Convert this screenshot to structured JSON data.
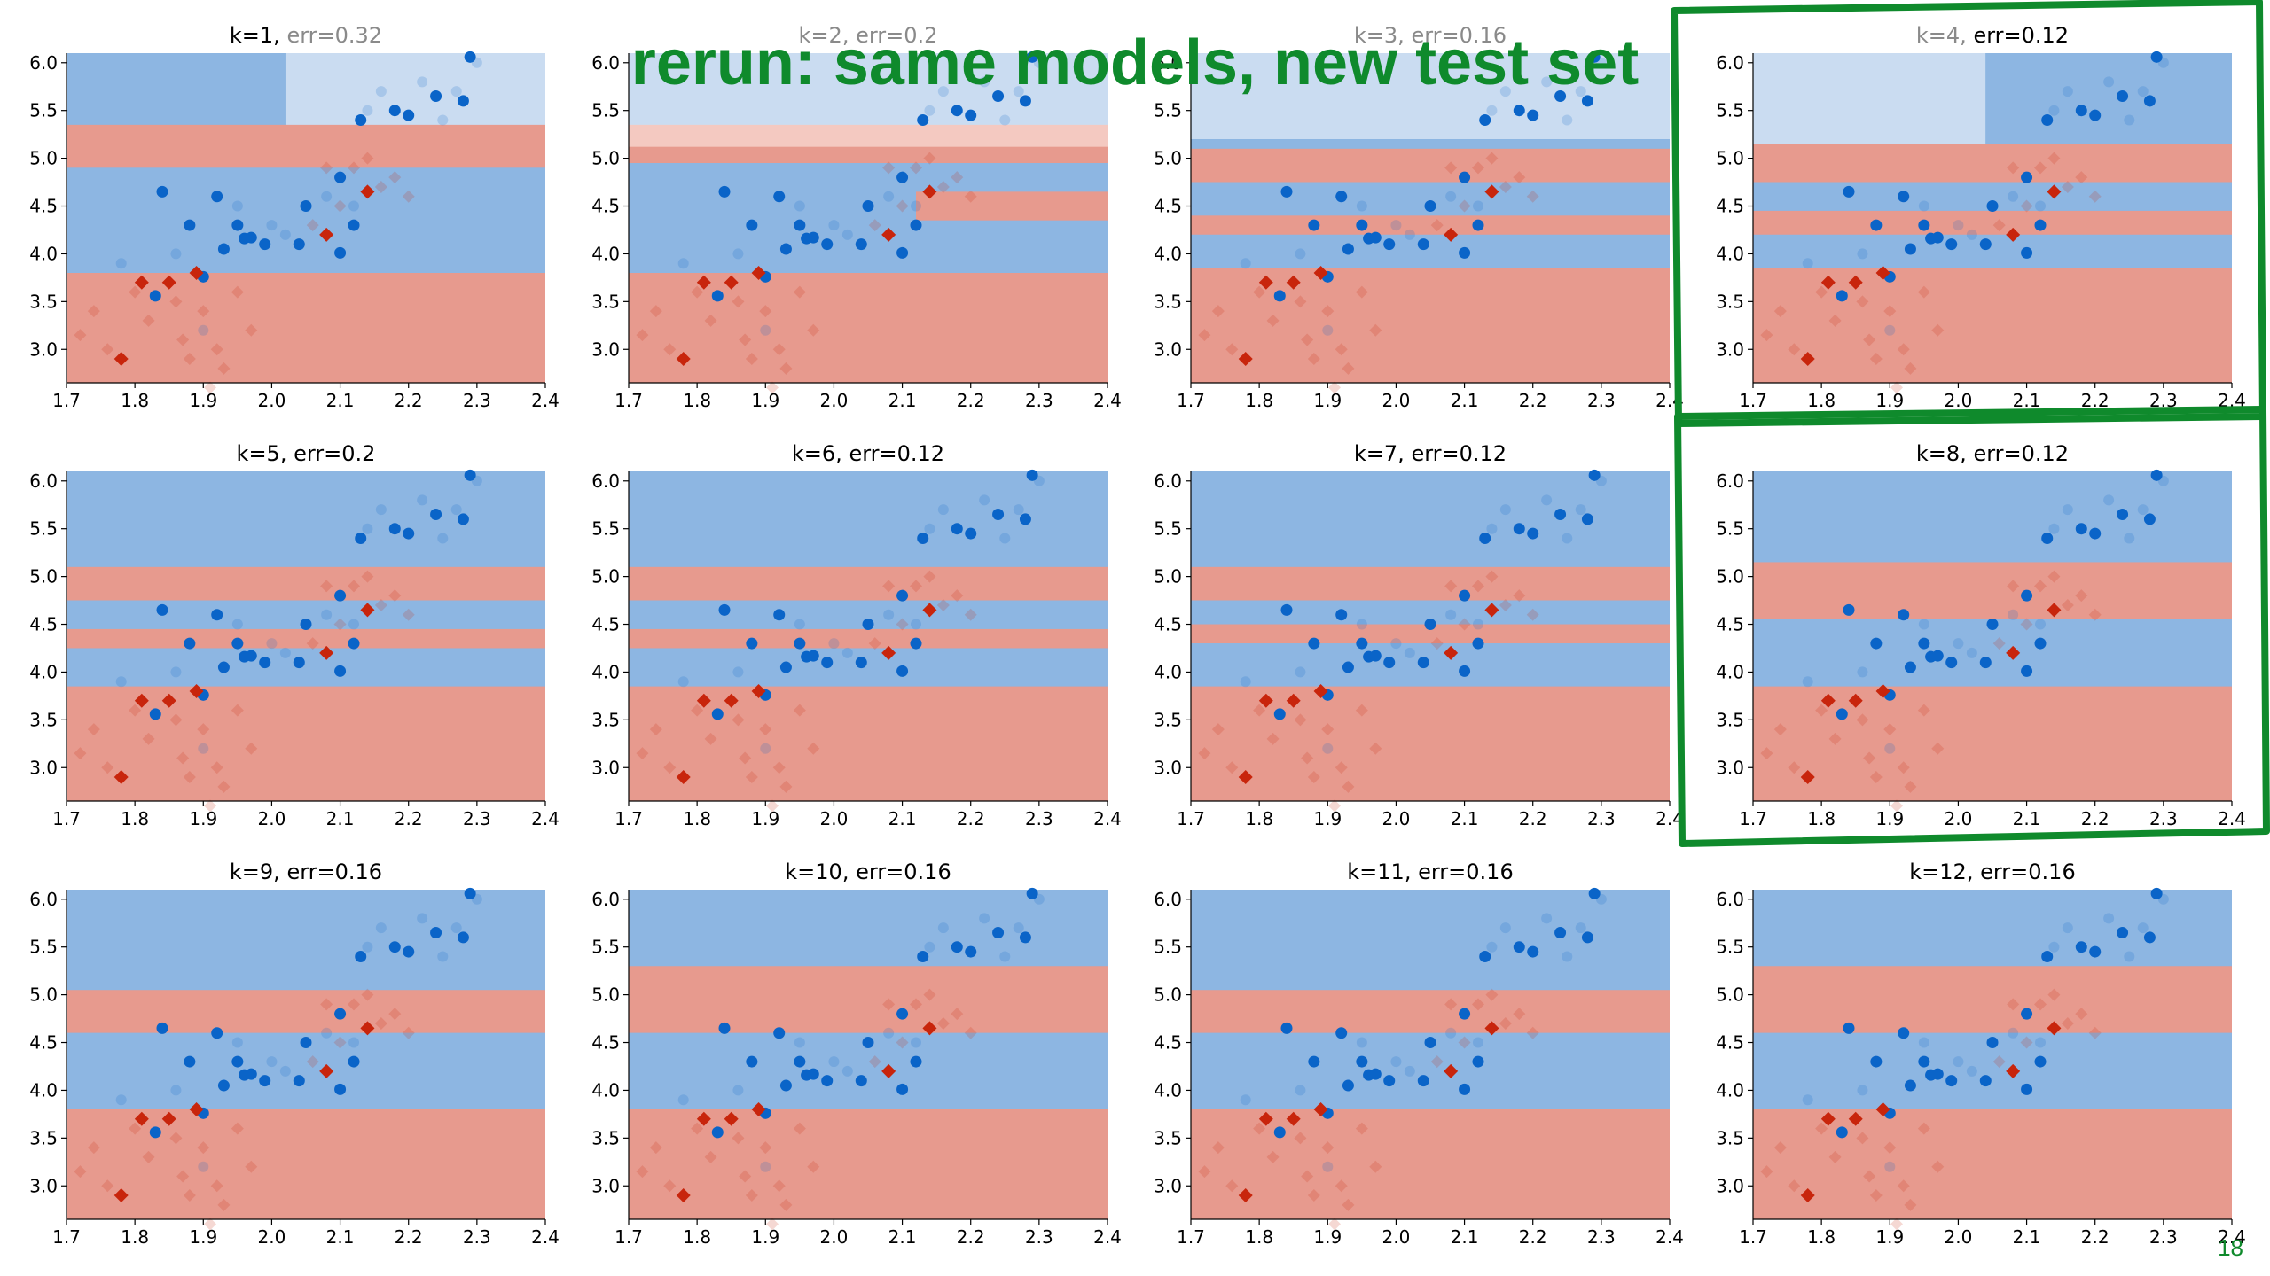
{
  "slide": {
    "headline": "rerun: same models, new test set",
    "page_number": "18"
  },
  "colors": {
    "class_blue_region": "#8db6e2",
    "class_blue_region_light": "#cadcf1",
    "class_red_region": "#e79a8e",
    "class_red_region_light": "#f4c9c1",
    "blue_point": "#0a64c8",
    "red_point": "#c8250c",
    "highlight_green": "#0f8a2c",
    "faded_title": "#8a8a8a"
  },
  "chart_data": {
    "type": "scatter",
    "grid": false,
    "xlim": [
      1.7,
      2.4
    ],
    "ylim": [
      2.65,
      6.1
    ],
    "x_ticks": [
      "1.7",
      "1.8",
      "1.9",
      "2.0",
      "2.1",
      "2.2",
      "2.3",
      "2.4"
    ],
    "y_ticks": [
      "3.0",
      "3.5",
      "4.0",
      "4.5",
      "5.0",
      "5.5",
      "6.0"
    ],
    "test_points_blue": [
      [
        1.83,
        3.56
      ],
      [
        1.84,
        4.65
      ],
      [
        1.88,
        4.3
      ],
      [
        1.9,
        3.76
      ],
      [
        1.92,
        4.6
      ],
      [
        1.93,
        4.05
      ],
      [
        1.95,
        4.3
      ],
      [
        1.99,
        4.1
      ],
      [
        1.96,
        4.16
      ],
      [
        2.05,
        4.5
      ],
      [
        2.04,
        4.1
      ],
      [
        2.1,
        4.8
      ],
      [
        2.1,
        4.01
      ],
      [
        2.12,
        4.3
      ],
      [
        2.13,
        5.4
      ],
      [
        2.18,
        5.5
      ],
      [
        2.2,
        5.45
      ],
      [
        2.24,
        5.65
      ],
      [
        2.28,
        5.6
      ],
      [
        2.29,
        6.06
      ],
      [
        1.97,
        4.17
      ]
    ],
    "test_points_red": [
      [
        1.78,
        2.9
      ],
      [
        1.81,
        3.7
      ],
      [
        1.85,
        3.7
      ],
      [
        1.89,
        3.8
      ],
      [
        2.08,
        4.2
      ],
      [
        2.14,
        4.65
      ]
    ],
    "train_points_blue": [
      [
        1.78,
        3.9
      ],
      [
        1.86,
        4.0
      ],
      [
        1.9,
        3.2
      ],
      [
        2.02,
        4.2
      ],
      [
        2.08,
        4.6
      ],
      [
        2.14,
        5.5
      ],
      [
        2.16,
        5.7
      ],
      [
        2.22,
        5.8
      ],
      [
        2.25,
        5.4
      ],
      [
        2.27,
        5.7
      ],
      [
        2.3,
        6.0
      ],
      [
        2.12,
        4.5
      ],
      [
        1.95,
        4.5
      ],
      [
        2.0,
        4.3
      ]
    ],
    "train_points_red": [
      [
        1.72,
        3.15
      ],
      [
        1.74,
        3.4
      ],
      [
        1.76,
        3.0
      ],
      [
        1.8,
        3.6
      ],
      [
        1.82,
        3.3
      ],
      [
        1.86,
        3.5
      ],
      [
        1.88,
        2.9
      ],
      [
        1.9,
        3.4
      ],
      [
        1.92,
        3.0
      ],
      [
        1.93,
        2.8
      ],
      [
        1.95,
        3.6
      ],
      [
        1.97,
        3.2
      ],
      [
        2.06,
        4.3
      ],
      [
        2.1,
        4.5
      ],
      [
        2.12,
        4.9
      ],
      [
        2.14,
        5.0
      ],
      [
        2.16,
        4.7
      ],
      [
        2.18,
        4.8
      ],
      [
        2.2,
        4.6
      ],
      [
        1.87,
        3.1
      ],
      [
        1.91,
        2.6
      ],
      [
        2.08,
        4.9
      ]
    ],
    "panels": [
      {
        "k_label": "k=1",
        "err_label": "err=0.32",
        "k_faded": false,
        "err_faded": true,
        "regions": [
          {
            "cls": "blue_light",
            "y0": 5.18,
            "y1": 6.1,
            "x0": 2.02,
            "x1": 2.4
          },
          {
            "cls": "blue",
            "y0": 5.18,
            "y1": 6.1,
            "x0": 1.7,
            "x1": 2.02
          },
          {
            "cls": "red",
            "y0": 4.9,
            "y1": 5.35
          },
          {
            "cls": "blue",
            "y0": 4.1,
            "y1": 4.9
          },
          {
            "cls": "red",
            "y0": 2.65,
            "y1": 3.8
          }
        ]
      },
      {
        "k_label": "k=2",
        "err_label": "err=0.2",
        "k_faded": true,
        "err_faded": true,
        "regions": [
          {
            "cls": "blue_light",
            "y0": 5.25,
            "y1": 6.1
          },
          {
            "cls": "red_light",
            "y0": 5.1,
            "y1": 5.35
          },
          {
            "cls": "red",
            "y0": 4.95,
            "y1": 5.12
          },
          {
            "cls": "blue",
            "y0": 4.25,
            "y1": 4.95
          },
          {
            "cls": "red",
            "y0": 4.35,
            "y1": 4.65,
            "x0": 2.12,
            "x1": 2.4
          },
          {
            "cls": "red",
            "y0": 2.65,
            "y1": 3.8
          }
        ]
      },
      {
        "k_label": "k=3",
        "err_label": "err=0.16",
        "k_faded": true,
        "err_faded": true,
        "regions": [
          {
            "cls": "blue_light",
            "y0": 5.2,
            "y1": 6.1
          },
          {
            "cls": "blue",
            "y0": 5.05,
            "y1": 5.2
          },
          {
            "cls": "red",
            "y0": 4.75,
            "y1": 5.1
          },
          {
            "cls": "blue",
            "y0": 4.35,
            "y1": 4.75
          },
          {
            "cls": "red",
            "y0": 4.2,
            "y1": 4.4
          },
          {
            "cls": "blue",
            "y0": 3.85,
            "y1": 4.2
          },
          {
            "cls": "red",
            "y0": 2.65,
            "y1": 3.85
          }
        ]
      },
      {
        "k_label": "k=4",
        "err_label": "err=0.12",
        "k_faded": true,
        "err_faded": false,
        "regions": [
          {
            "cls": "blue_light",
            "y0": 5.15,
            "y1": 6.1,
            "x0": 1.7,
            "x1": 2.04
          },
          {
            "cls": "blue",
            "y0": 5.15,
            "y1": 6.1,
            "x0": 2.04,
            "x1": 2.4
          },
          {
            "cls": "red",
            "y0": 4.75,
            "y1": 5.15
          },
          {
            "cls": "blue",
            "y0": 4.45,
            "y1": 4.75
          },
          {
            "cls": "red",
            "y0": 4.2,
            "y1": 4.45
          },
          {
            "cls": "blue",
            "y0": 3.85,
            "y1": 4.2
          },
          {
            "cls": "red",
            "y0": 2.65,
            "y1": 3.85
          }
        ]
      },
      {
        "k_label": "k=5",
        "err_label": "err=0.2",
        "k_faded": false,
        "err_faded": false,
        "regions": [
          {
            "cls": "blue",
            "y0": 5.1,
            "y1": 6.1
          },
          {
            "cls": "red",
            "y0": 4.75,
            "y1": 5.1
          },
          {
            "cls": "blue",
            "y0": 4.45,
            "y1": 4.75
          },
          {
            "cls": "red",
            "y0": 4.25,
            "y1": 4.45
          },
          {
            "cls": "blue",
            "y0": 3.85,
            "y1": 4.25
          },
          {
            "cls": "red",
            "y0": 2.65,
            "y1": 3.85
          }
        ]
      },
      {
        "k_label": "k=6",
        "err_label": "err=0.12",
        "k_faded": false,
        "err_faded": false,
        "regions": [
          {
            "cls": "blue",
            "y0": 5.1,
            "y1": 6.1
          },
          {
            "cls": "red",
            "y0": 4.75,
            "y1": 5.1
          },
          {
            "cls": "blue",
            "y0": 4.45,
            "y1": 4.75
          },
          {
            "cls": "red",
            "y0": 4.25,
            "y1": 4.45
          },
          {
            "cls": "blue",
            "y0": 3.85,
            "y1": 4.25
          },
          {
            "cls": "red",
            "y0": 2.65,
            "y1": 3.85
          }
        ]
      },
      {
        "k_label": "k=7",
        "err_label": "err=0.12",
        "k_faded": false,
        "err_faded": false,
        "regions": [
          {
            "cls": "blue",
            "y0": 5.1,
            "y1": 6.1
          },
          {
            "cls": "red",
            "y0": 4.75,
            "y1": 5.1
          },
          {
            "cls": "blue",
            "y0": 4.5,
            "y1": 4.75
          },
          {
            "cls": "red",
            "y0": 4.3,
            "y1": 4.5
          },
          {
            "cls": "blue",
            "y0": 3.85,
            "y1": 4.3
          },
          {
            "cls": "red",
            "y0": 2.65,
            "y1": 3.85
          }
        ]
      },
      {
        "k_label": "k=8",
        "err_label": "err=0.12",
        "k_faded": false,
        "err_faded": false,
        "regions": [
          {
            "cls": "blue",
            "y0": 5.15,
            "y1": 6.1
          },
          {
            "cls": "red",
            "y0": 4.55,
            "y1": 5.15
          },
          {
            "cls": "blue",
            "y0": 3.85,
            "y1": 4.55
          },
          {
            "cls": "red",
            "y0": 2.65,
            "y1": 3.85
          }
        ]
      },
      {
        "k_label": "k=9",
        "err_label": "err=0.16",
        "k_faded": false,
        "err_faded": false,
        "regions": [
          {
            "cls": "blue",
            "y0": 5.05,
            "y1": 6.1
          },
          {
            "cls": "red",
            "y0": 4.6,
            "y1": 5.05
          },
          {
            "cls": "blue",
            "y0": 3.8,
            "y1": 4.6
          },
          {
            "cls": "red",
            "y0": 2.65,
            "y1": 3.8
          }
        ]
      },
      {
        "k_label": "k=10",
        "err_label": "err=0.16",
        "k_faded": false,
        "err_faded": false,
        "regions": [
          {
            "cls": "blue",
            "y0": 5.3,
            "y1": 6.1,
            "x0": 2.0,
            "x1": 2.4
          },
          {
            "cls": "blue",
            "y0": 5.05,
            "y1": 6.1,
            "x0": 1.7,
            "x1": 2.0
          },
          {
            "cls": "red",
            "y0": 4.6,
            "y1": 5.3
          },
          {
            "cls": "blue",
            "y0": 3.8,
            "y1": 4.6
          },
          {
            "cls": "red",
            "y0": 2.65,
            "y1": 3.8
          }
        ]
      },
      {
        "k_label": "k=11",
        "err_label": "err=0.16",
        "k_faded": false,
        "err_faded": false,
        "regions": [
          {
            "cls": "blue",
            "y0": 5.05,
            "y1": 6.1
          },
          {
            "cls": "red",
            "y0": 4.6,
            "y1": 5.05
          },
          {
            "cls": "blue",
            "y0": 3.8,
            "y1": 4.6
          },
          {
            "cls": "red",
            "y0": 2.65,
            "y1": 3.8
          }
        ]
      },
      {
        "k_label": "k=12",
        "err_label": "err=0.16",
        "k_faded": false,
        "err_faded": false,
        "regions": [
          {
            "cls": "blue",
            "y0": 5.3,
            "y1": 6.1,
            "x0": 2.0,
            "x1": 2.4
          },
          {
            "cls": "blue",
            "y0": 5.05,
            "y1": 6.1,
            "x0": 1.7,
            "x1": 2.0
          },
          {
            "cls": "red",
            "y0": 4.6,
            "y1": 5.3
          },
          {
            "cls": "blue",
            "y0": 3.8,
            "y1": 4.6
          },
          {
            "cls": "red",
            "y0": 2.65,
            "y1": 3.8
          }
        ]
      }
    ],
    "highlighted_panels": [
      "k=4",
      "k=8"
    ]
  }
}
